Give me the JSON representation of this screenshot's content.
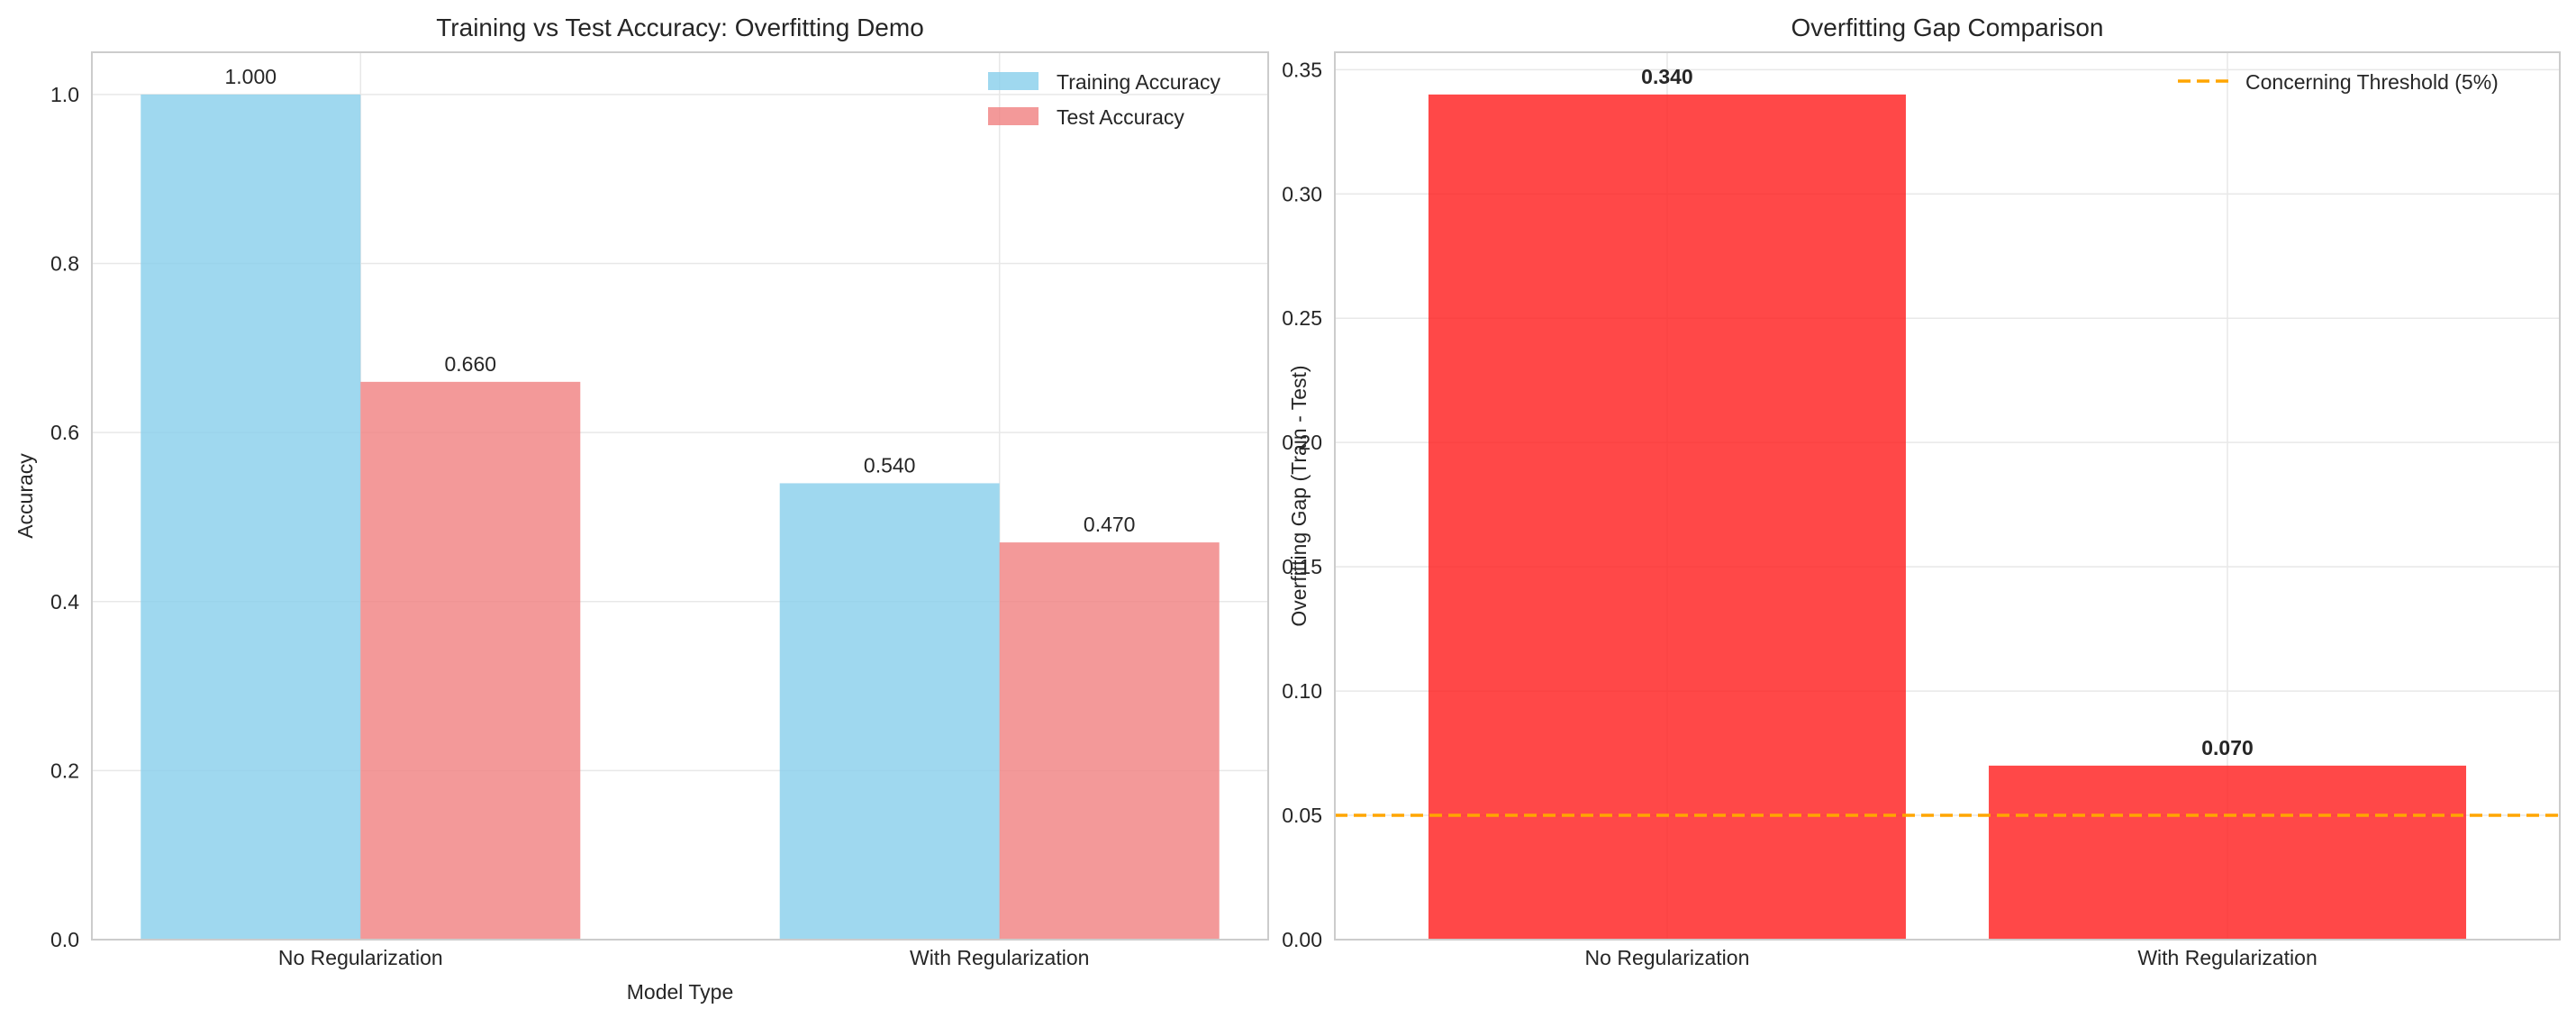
{
  "colors": {
    "training": "#87CEEB",
    "test": "#F08080",
    "gap_bar": "#FF2020",
    "threshold": "#FFA500",
    "grid": "#e8e8e8",
    "axes": "#cccccc"
  },
  "chart_data": [
    {
      "type": "bar",
      "title": "Training vs Test Accuracy: Overfitting Demo",
      "xlabel": "Model Type",
      "ylabel": "Accuracy",
      "categories": [
        "No Regularization",
        "With Regularization"
      ],
      "series": [
        {
          "name": "Training Accuracy",
          "values": [
            1.0,
            0.54
          ],
          "labels": [
            "1.000",
            "0.540"
          ]
        },
        {
          "name": "Test Accuracy",
          "values": [
            0.66,
            0.47
          ],
          "labels": [
            "0.660",
            "0.470"
          ]
        }
      ],
      "ylim": [
        0,
        1.05
      ],
      "yticks": [
        "0.0",
        "0.2",
        "0.4",
        "0.6",
        "0.8",
        "1.0"
      ],
      "ytick_values": [
        0,
        0.2,
        0.4,
        0.6,
        0.8,
        1.0
      ],
      "grid": true,
      "legend": "top-right"
    },
    {
      "type": "bar",
      "title": "Overfitting Gap Comparison",
      "xlabel": "",
      "ylabel": "Overfitting Gap (Train - Test)",
      "categories": [
        "No Regularization",
        "With Regularization"
      ],
      "values": [
        0.34,
        0.07
      ],
      "labels": [
        "0.340",
        "0.070"
      ],
      "ylim": [
        0,
        0.357
      ],
      "yticks": [
        "0.00",
        "0.05",
        "0.10",
        "0.15",
        "0.20",
        "0.25",
        "0.30",
        "0.35"
      ],
      "ytick_values": [
        0,
        0.05,
        0.1,
        0.15,
        0.2,
        0.25,
        0.3,
        0.35
      ],
      "threshold": {
        "name": "Concerning Threshold (5%)",
        "value": 0.05
      },
      "grid": true,
      "legend": "top-right"
    }
  ]
}
